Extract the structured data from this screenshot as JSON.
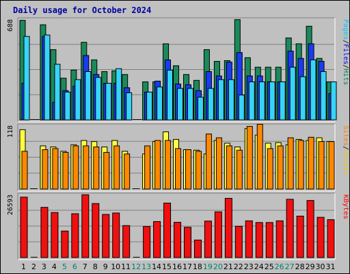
{
  "chart_data": {
    "type": "bar",
    "title": "Daily usage for October 2024",
    "x_tick_labels": [
      "1",
      "2",
      "3",
      "4",
      "5",
      "6",
      "7",
      "8",
      "9",
      "10",
      "11",
      "12",
      "13",
      "14",
      "15",
      "16",
      "17",
      "18",
      "19",
      "20",
      "21",
      "22",
      "23",
      "24",
      "25",
      "26",
      "27",
      "28",
      "29",
      "30",
      "31"
    ],
    "weekend_days": [
      5,
      6,
      12,
      13,
      19,
      20,
      26,
      27
    ],
    "panels": [
      {
        "name": "top",
        "ymax_label": "688",
        "ymax": 688,
        "right_label": [
          "Pages",
          "/",
          "Files",
          "/",
          "Hits"
        ],
        "right_label_colors": [
          "#00c8ff",
          "#000000",
          "#0000ff",
          "#000000",
          "#00805c"
        ],
        "series": [
          {
            "name": "Hits",
            "color": "#1b8a5a",
            "values": [
              680,
              null,
              650,
              480,
              285,
              340,
              530,
              410,
              330,
              335,
              310,
              null,
              260,
              260,
              520,
              370,
              310,
              270,
              480,
              400,
              405,
              685,
              425,
              360,
              360,
              360,
              560,
              520,
              640,
              420,
              260
            ]
          },
          {
            "name": "Files",
            "color": "#1a3cf0",
            "values": [
              250,
              null,
              570,
              120,
              200,
              230,
              440,
              310,
              250,
              250,
              220,
              null,
              190,
              265,
              410,
              245,
              240,
              200,
              330,
              300,
              395,
              460,
              300,
              300,
              260,
              260,
              470,
              420,
              520,
              400,
              180
            ]
          },
          {
            "name": "Pages",
            "color": "#38d4f8",
            "values": [
              570,
              null,
              580,
              380,
              190,
              275,
              330,
              290,
              250,
              350,
              185,
              null,
              190,
              225,
              340,
              215,
              215,
              155,
              215,
              275,
              275,
              170,
              260,
              260,
              260,
              260,
              360,
              295,
              410,
              330,
              260
            ]
          }
        ]
      },
      {
        "name": "middle",
        "ymax_label": "118",
        "ymax": 118,
        "right_label": [
          "Sites",
          "/",
          "Visits"
        ],
        "right_label_colors": [
          "#ff8000",
          "#000000",
          "#f0c800"
        ],
        "series": [
          {
            "name": "Visits",
            "color": "#ffff40",
            "values": [
              110,
              null,
              80,
              78,
              70,
              82,
              90,
              88,
              78,
              90,
              70,
              null,
              65,
              88,
              106,
              92,
              73,
              72,
              65,
              90,
              85,
              78,
              112,
              100,
              85,
              86,
              82,
              92,
              90,
              95,
              88
            ]
          },
          {
            "name": "Sites",
            "color": "#ff8800",
            "values": [
              70,
              null,
              73,
              75,
              68,
              80,
              80,
              78,
              68,
              80,
              65,
              null,
              80,
              90,
              90,
              75,
              73,
              70,
              102,
              95,
              80,
              72,
              116,
              120,
              75,
              80,
              95,
              90,
              96,
              88,
              88
            ]
          }
        ]
      },
      {
        "name": "bottom",
        "ymax_label": "26593",
        "ymax": 26593,
        "right_label": [
          "KBytes"
        ],
        "right_label_colors": [
          "#ff0000"
        ],
        "series": [
          {
            "name": "KBytes",
            "color": "#f01010",
            "values": [
              25500,
              null,
              21200,
              19000,
              11200,
              18500,
              26500,
              22800,
              18200,
              18800,
              13500,
              null,
              13100,
              15200,
              23000,
              14900,
              12800,
              7400,
              15400,
              19300,
              25000,
              13200,
              15500,
              14800,
              14800,
              15500,
              24600,
              17500,
              24100,
              17000,
              16000
            ]
          }
        ]
      }
    ]
  }
}
